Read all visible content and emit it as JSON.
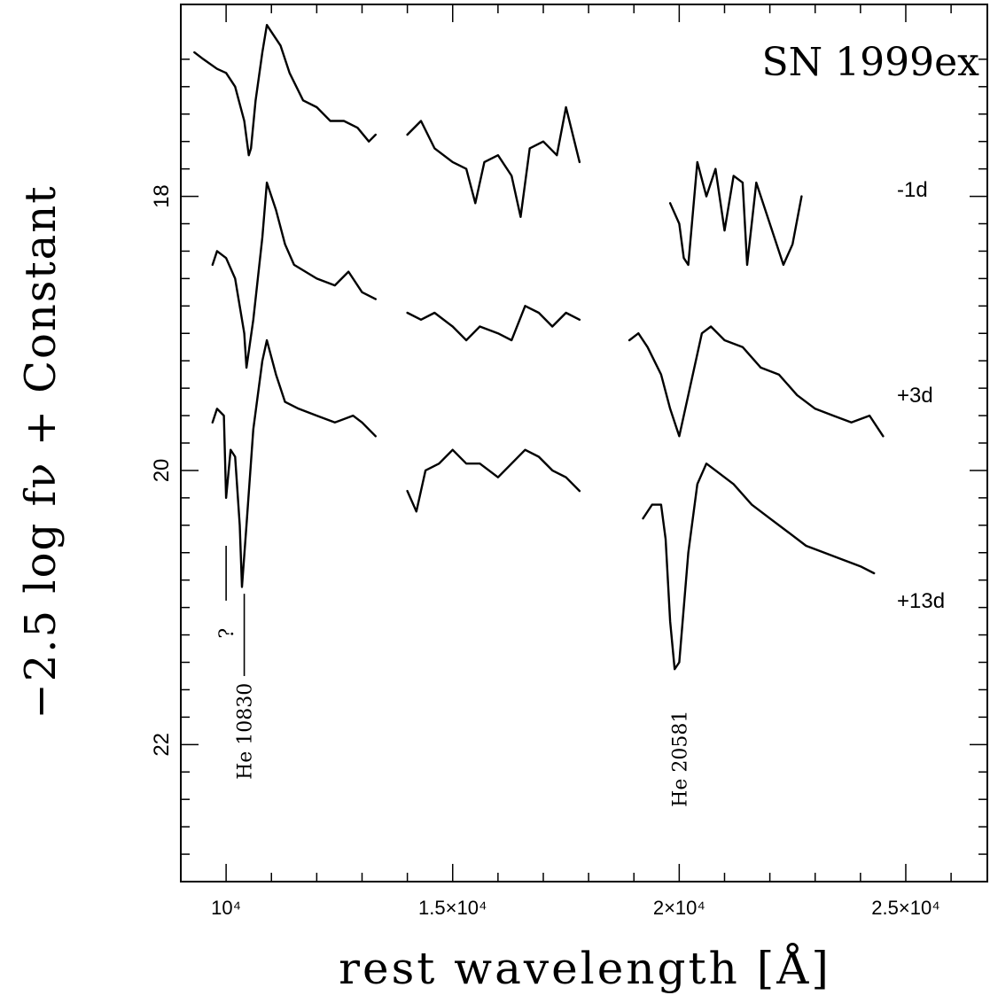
{
  "chart_data": {
    "type": "line",
    "title": "SN 1999ex",
    "xlabel": "rest wavelength [Å]",
    "ylabel": "−2.5 log fν + Constant",
    "xlim": [
      9000,
      26800
    ],
    "ylim": [
      23.0,
      16.6
    ],
    "y_inverted": true,
    "grid": false,
    "x_ticks": [
      {
        "value": 10000,
        "label": "10⁴"
      },
      {
        "value": 15000,
        "label": "1.5×10⁴"
      },
      {
        "value": 20000,
        "label": "2×10⁴"
      },
      {
        "value": 25000,
        "label": "2.5×10⁴"
      }
    ],
    "y_ticks": [
      {
        "value": 18,
        "label": "18"
      },
      {
        "value": 20,
        "label": "20"
      },
      {
        "value": 22,
        "label": "22"
      }
    ],
    "series": [
      {
        "name": "-1d",
        "label_y": 17.95,
        "segments": [
          {
            "x": [
              9300,
              9500,
              9800,
              10000,
              10200,
              10400,
              10500,
              10550,
              10650,
              10800,
              10900,
              11000,
              11200,
              11400,
              11700,
              12000,
              12300,
              12600,
              12900,
              13150,
              13300
            ],
            "y": [
              16.95,
              17.0,
              17.07,
              17.1,
              17.2,
              17.45,
              17.7,
              17.65,
              17.3,
              16.95,
              16.75,
              16.8,
              16.9,
              17.1,
              17.3,
              17.35,
              17.45,
              17.45,
              17.5,
              17.6,
              17.55
            ]
          },
          {
            "x": [
              14000,
              14300,
              14600,
              15000,
              15300,
              15500,
              15700,
              16000,
              16300,
              16500,
              16700,
              17000,
              17300,
              17500,
              17800
            ],
            "y": [
              17.55,
              17.45,
              17.65,
              17.75,
              17.8,
              18.05,
              17.75,
              17.7,
              17.85,
              18.15,
              17.65,
              17.6,
              17.7,
              17.35,
              17.75
            ]
          },
          {
            "x": [
              19800,
              20000,
              20100,
              20200,
              20400,
              20600,
              20800,
              21000,
              21200,
              21400,
              21500,
              21700,
              22000,
              22300,
              22500,
              22700
            ],
            "y": [
              18.05,
              18.2,
              18.45,
              18.5,
              17.75,
              18.0,
              17.8,
              18.25,
              17.85,
              17.9,
              18.5,
              17.9,
              18.2,
              18.5,
              18.35,
              18.0
            ]
          }
        ]
      },
      {
        "name": "+3d",
        "label_y": 19.45,
        "segments": [
          {
            "x": [
              9700,
              9800,
              10000,
              10200,
              10400,
              10450,
              10600,
              10800,
              10900,
              11100,
              11300,
              11500,
              12000,
              12400,
              12700,
              13000,
              13300
            ],
            "y": [
              18.5,
              18.4,
              18.45,
              18.6,
              19.0,
              19.25,
              18.9,
              18.3,
              17.9,
              18.1,
              18.35,
              18.5,
              18.6,
              18.65,
              18.55,
              18.7,
              18.75
            ]
          },
          {
            "x": [
              14000,
              14300,
              14600,
              15000,
              15300,
              15600,
              16000,
              16300,
              16600,
              16900,
              17200,
              17500,
              17800
            ],
            "y": [
              18.85,
              18.9,
              18.85,
              18.95,
              19.05,
              18.95,
              19.0,
              19.05,
              18.8,
              18.85,
              18.95,
              18.85,
              18.9
            ]
          },
          {
            "x": [
              18900,
              19100,
              19300,
              19600,
              19800,
              19950,
              20000,
              20200,
              20500,
              20700,
              21000,
              21400,
              21800,
              22200,
              22600,
              23000,
              23400,
              23800,
              24200,
              24500
            ],
            "y": [
              19.05,
              19.0,
              19.1,
              19.3,
              19.55,
              19.7,
              19.75,
              19.45,
              19.0,
              18.95,
              19.05,
              19.1,
              19.25,
              19.3,
              19.45,
              19.55,
              19.6,
              19.65,
              19.6,
              19.75
            ]
          }
        ]
      },
      {
        "name": "+13d",
        "label_y": 20.95,
        "segments": [
          {
            "x": [
              9700,
              9800,
              9950,
              10000,
              10100,
              10200,
              10300,
              10350,
              10450,
              10600,
              10800,
              10900,
              11100,
              11300,
              11600,
              12000,
              12400,
              12800,
              13000,
              13300
            ],
            "y": [
              19.65,
              19.55,
              19.6,
              20.2,
              19.85,
              19.9,
              20.4,
              20.85,
              20.4,
              19.7,
              19.2,
              19.05,
              19.3,
              19.5,
              19.55,
              19.6,
              19.65,
              19.6,
              19.65,
              19.75
            ]
          },
          {
            "x": [
              14000,
              14200,
              14400,
              14700,
              15000,
              15300,
              15600,
              16000,
              16300,
              16600,
              16900,
              17200,
              17500,
              17800
            ],
            "y": [
              20.15,
              20.3,
              20.0,
              19.95,
              19.85,
              19.95,
              19.95,
              20.05,
              19.95,
              19.85,
              19.9,
              20.0,
              20.05,
              20.15
            ]
          },
          {
            "x": [
              19200,
              19400,
              19600,
              19700,
              19800,
              19900,
              20000,
              20200,
              20400,
              20600,
              20800,
              21200,
              21600,
              22000,
              22400,
              22800,
              23200,
              23600,
              24000,
              24300
            ],
            "y": [
              20.35,
              20.25,
              20.25,
              20.5,
              21.1,
              21.45,
              21.4,
              20.6,
              20.1,
              19.95,
              20.0,
              20.1,
              20.25,
              20.35,
              20.45,
              20.55,
              20.6,
              20.65,
              20.7,
              20.75
            ]
          }
        ]
      }
    ],
    "annotations": [
      {
        "text": "He 10830",
        "x": 10400,
        "line_y": [
          20.9,
          21.5
        ],
        "label_y": 21.55
      },
      {
        "text": "?",
        "x": 10000,
        "line_y": [
          20.55,
          20.95
        ],
        "label_y": 21.15
      },
      {
        "text": "He 20581",
        "x": 20000,
        "line_y": null,
        "label_y": 21.75
      }
    ]
  }
}
